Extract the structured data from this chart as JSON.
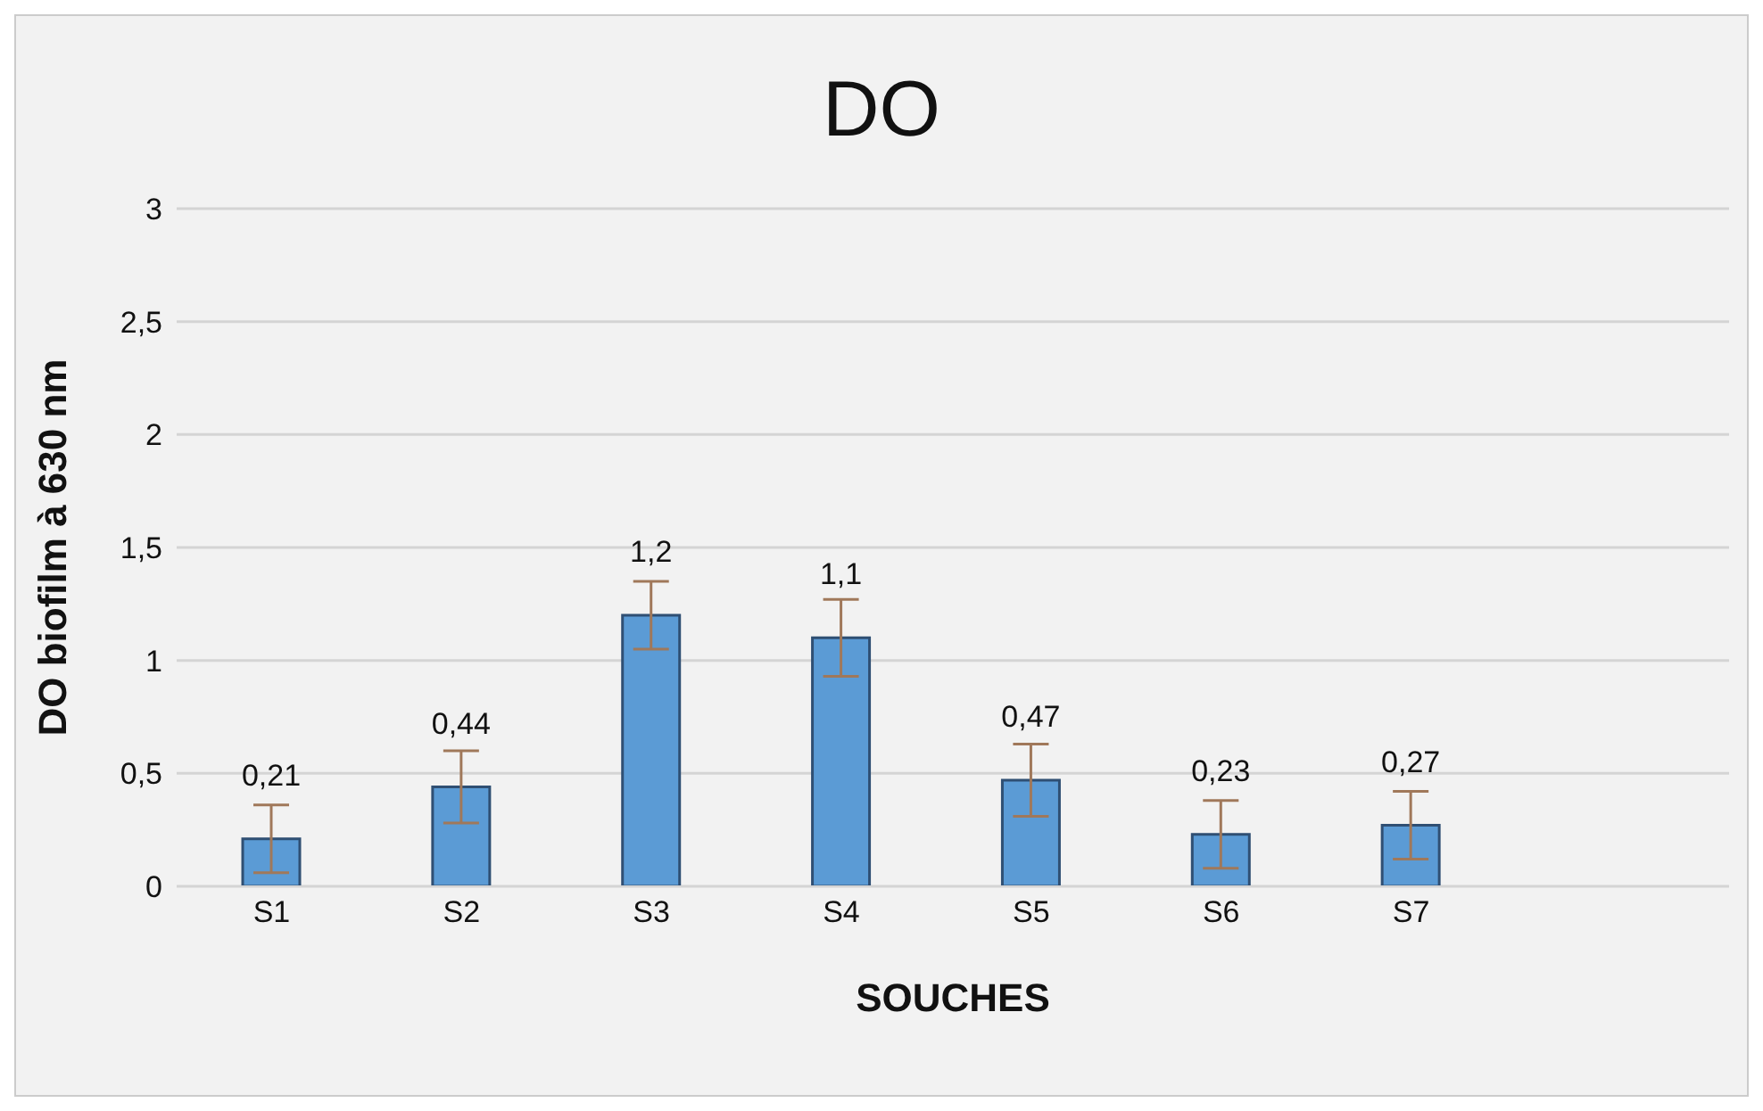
{
  "chart_data": {
    "type": "bar",
    "title": "DO",
    "xlabel": "SOUCHES",
    "ylabel": "DO biofilm à 630 nm",
    "categories": [
      "S1",
      "S2",
      "S3",
      "S4",
      "S5",
      "S6",
      "S7"
    ],
    "values": [
      0.21,
      0.44,
      1.2,
      1.1,
      0.47,
      0.23,
      0.27
    ],
    "value_labels": [
      "0,21",
      "0,44",
      "1,2",
      "1,1",
      "0,47",
      "0,23",
      "0,27"
    ],
    "errors": [
      0.15,
      0.16,
      0.15,
      0.17,
      0.16,
      0.15,
      0.15
    ],
    "color": "#5b9bd5",
    "ylim": [
      0,
      3
    ],
    "yticks": [
      0,
      {
        "value": 0.5,
        "label": "0,5"
      },
      1,
      {
        "value": 1.5,
        "label": "1,5"
      },
      2,
      {
        "value": 2.5,
        "label": "2,5"
      },
      3
    ],
    "grid": "y"
  }
}
